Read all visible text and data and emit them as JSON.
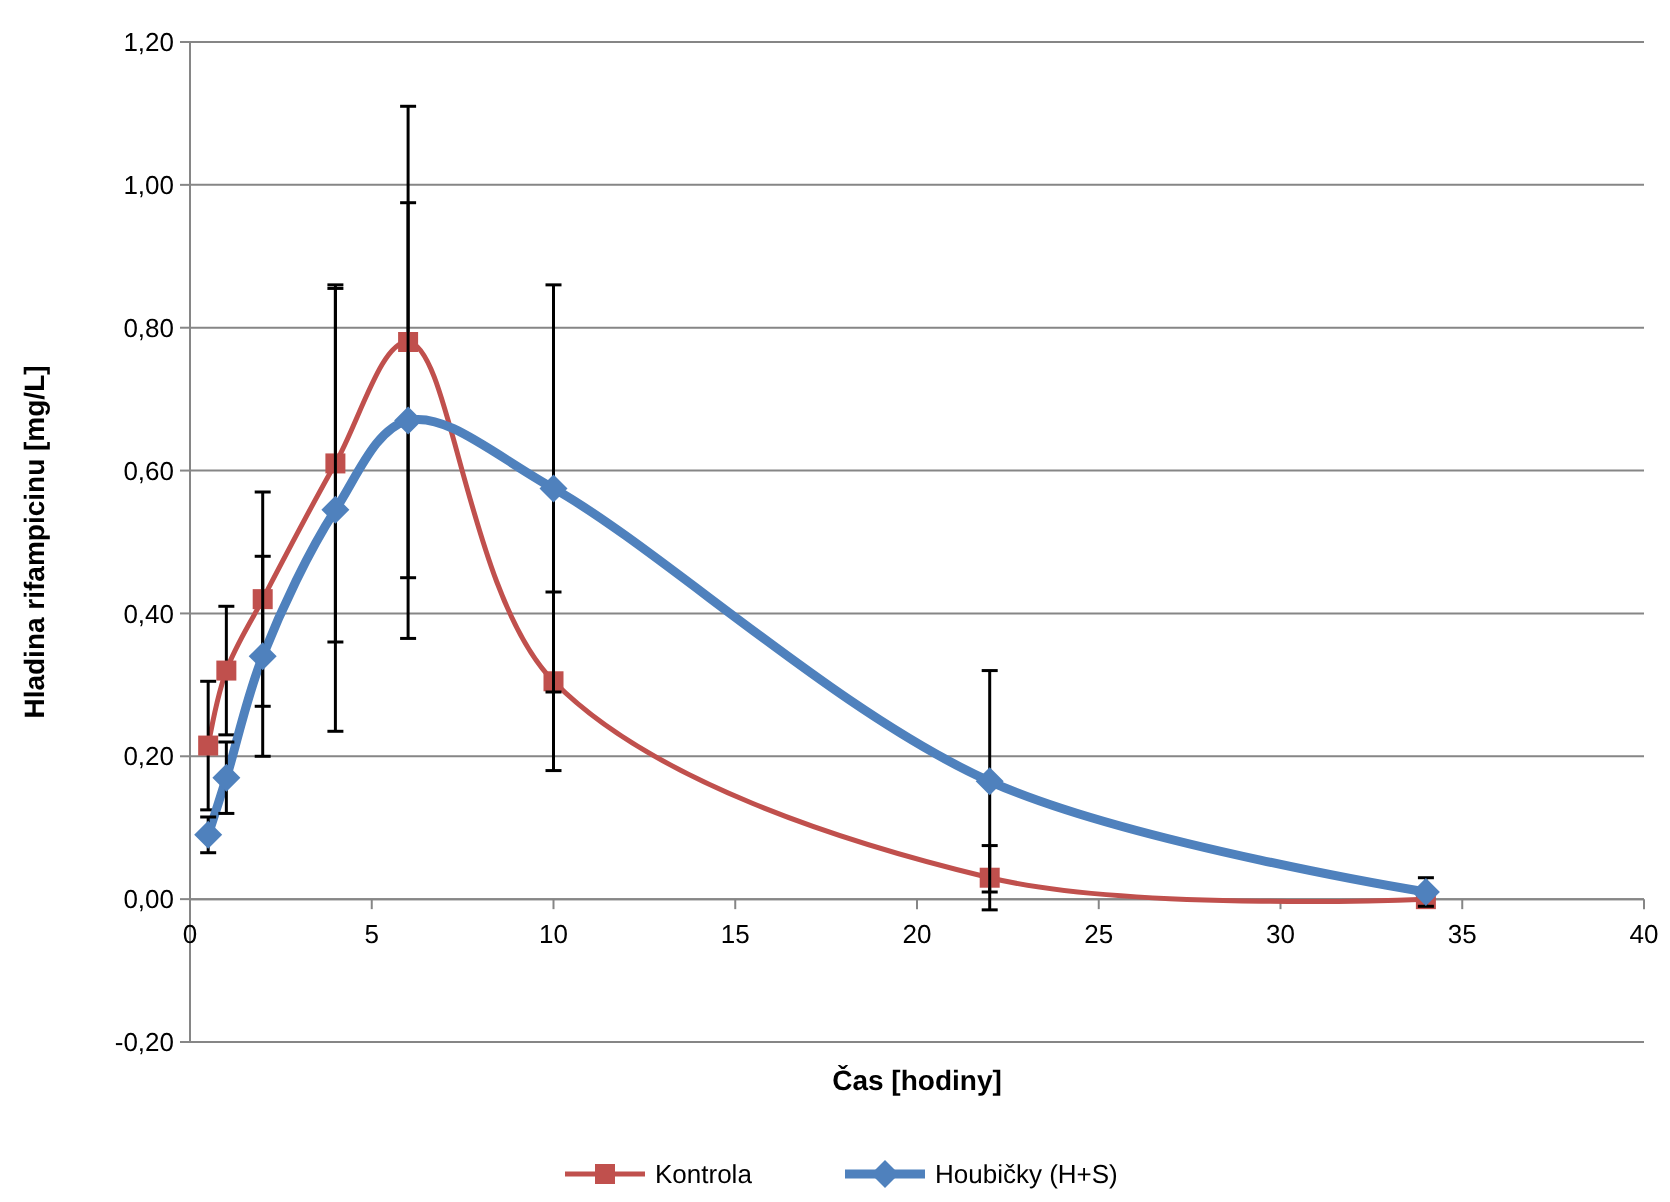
{
  "chart_data": {
    "type": "line",
    "xlabel": "Čas [hodiny]",
    "ylabel": "Hladina rifampicinu [mg/L]",
    "xlim": [
      0,
      40
    ],
    "xticks": [
      0,
      5,
      10,
      15,
      20,
      25,
      30,
      35,
      40
    ],
    "ylim": [
      -0.2,
      1.2
    ],
    "yticks": [
      {
        "value": -0.2,
        "label": "-0,20"
      },
      {
        "value": 0,
        "label": "0,00"
      },
      {
        "value": 0.2,
        "label": "0,20"
      },
      {
        "value": 0.4,
        "label": "0,40"
      },
      {
        "value": 0.6,
        "label": "0,60"
      },
      {
        "value": 0.8,
        "label": "0,80"
      },
      {
        "value": 1,
        "label": "1,00"
      },
      {
        "value": 1.2,
        "label": "1,20"
      }
    ],
    "grid": "y",
    "legend": "bottom",
    "x": [
      0.5,
      1,
      2,
      4,
      6,
      10,
      22,
      34
    ],
    "series": [
      {
        "name": "Kontrola",
        "color": "#c0504d",
        "marker": "square",
        "values": [
          0.215,
          0.32,
          0.42,
          0.61,
          0.78,
          0.305,
          0.03,
          0
        ],
        "errors": [
          0.09,
          0.09,
          0.15,
          0.25,
          0.33,
          0.125,
          0.045,
          0.005
        ]
      },
      {
        "name": "Houbičky (H+S)",
        "color": "#4f81bd",
        "marker": "diamond",
        "values": [
          0.09,
          0.17,
          0.34,
          0.545,
          0.67,
          0.575,
          0.165,
          0.01
        ],
        "errors": [
          0.025,
          0.05,
          0.14,
          0.31,
          0.305,
          0.285,
          0.155,
          0.02
        ]
      }
    ]
  }
}
